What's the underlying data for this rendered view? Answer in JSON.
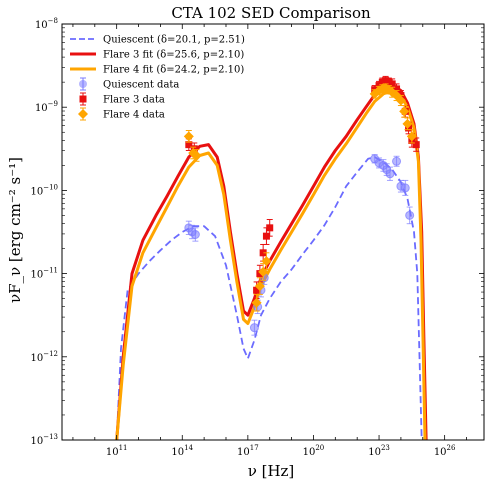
{
  "chart_data": {
    "type": "scatter",
    "title": "CTA 102 SED Comparison",
    "xlabel": "ν [Hz]",
    "ylabel": "νF_ν [erg cm⁻² s⁻¹]",
    "x_scale": "log",
    "y_scale": "log",
    "xlim_log10": [
      8.5,
      27.8
    ],
    "ylim_log10": [
      -13,
      -8
    ],
    "x_ticks": [
      {
        "log10": 11,
        "label": "10",
        "exp": "11"
      },
      {
        "log10": 14,
        "label": "10",
        "exp": "14"
      },
      {
        "log10": 17,
        "label": "10",
        "exp": "17"
      },
      {
        "log10": 20,
        "label": "10",
        "exp": "20"
      },
      {
        "log10": 23,
        "label": "10",
        "exp": "23"
      },
      {
        "log10": 26,
        "label": "10",
        "exp": "26"
      }
    ],
    "y_ticks": [
      {
        "log10": -13,
        "label": "10",
        "exp": "−13"
      },
      {
        "log10": -12,
        "label": "10",
        "exp": "−12"
      },
      {
        "log10": -11,
        "label": "10",
        "exp": "−11"
      },
      {
        "log10": -10,
        "label": "10",
        "exp": "−10"
      },
      {
        "log10": -9,
        "label": "10",
        "exp": "−9"
      },
      {
        "log10": -8,
        "label": "10",
        "exp": "−8"
      }
    ],
    "grid": false,
    "legend_position": "top-left",
    "legend": [
      {
        "label": "Quiescent (δ=20.1, p=2.51)",
        "style": "dashed-line",
        "color": "#6b6bff"
      },
      {
        "label": "Flare 3 fit (δ=25.6, p=2.10)",
        "style": "line",
        "color": "#e81010"
      },
      {
        "label": "Flare 4 fit (δ=24.2, p=2.10)",
        "style": "line",
        "color": "#ffa500"
      },
      {
        "label": "Quiescent data",
        "style": "circle",
        "color": "#7b7bff"
      },
      {
        "label": "Flare 3 data",
        "style": "square",
        "color": "#e81010"
      },
      {
        "label": "Flare 4 data",
        "style": "diamond",
        "color": "#ffa500"
      }
    ],
    "series": [
      {
        "kind": "model",
        "color": "#6b6bff",
        "dash": true,
        "width": 1.8,
        "x_log10": [
          11.0,
          11.2,
          11.5,
          12.0,
          12.5,
          13.0,
          13.5,
          14.0,
          14.5,
          15.0,
          15.5,
          16.0,
          16.5,
          16.8,
          17.0,
          17.3,
          17.6,
          18.0,
          18.5,
          19.0,
          19.5,
          20.0,
          20.5,
          21.0,
          21.5,
          22.0,
          22.5,
          22.8,
          23.0,
          23.3,
          23.6,
          24.0,
          24.3,
          24.6,
          24.75,
          24.85,
          24.95
        ],
        "y_log10": [
          -13.0,
          -11.9,
          -11.2,
          -11.0,
          -10.85,
          -10.72,
          -10.6,
          -10.5,
          -10.43,
          -10.43,
          -10.55,
          -10.9,
          -11.5,
          -11.9,
          -12.02,
          -11.8,
          -11.5,
          -11.3,
          -11.1,
          -10.95,
          -10.77,
          -10.6,
          -10.42,
          -10.2,
          -9.95,
          -9.78,
          -9.62,
          -9.6,
          -9.63,
          -9.68,
          -9.75,
          -9.9,
          -10.1,
          -10.5,
          -11.0,
          -12.0,
          -13.0
        ]
      },
      {
        "kind": "model",
        "color": "#e81010",
        "dash": false,
        "width": 3,
        "x_log10": [
          11.0,
          11.3,
          11.7,
          12.2,
          12.8,
          13.3,
          13.8,
          14.3,
          14.8,
          15.2,
          15.6,
          15.9,
          16.2,
          16.5,
          16.8,
          17.0,
          17.3,
          17.6,
          18.0,
          18.5,
          19.0,
          19.5,
          20.0,
          20.5,
          21.0,
          21.5,
          22.0,
          22.4,
          22.8,
          23.2,
          23.6,
          24.0,
          24.3,
          24.6,
          24.8,
          24.95,
          25.05,
          25.15
        ],
        "y_log10": [
          -13.0,
          -12.0,
          -11.0,
          -10.6,
          -10.3,
          -10.07,
          -9.83,
          -9.6,
          -9.47,
          -9.45,
          -9.6,
          -9.95,
          -10.5,
          -11.0,
          -11.45,
          -11.5,
          -11.3,
          -11.05,
          -10.85,
          -10.62,
          -10.4,
          -10.18,
          -9.95,
          -9.72,
          -9.52,
          -9.35,
          -9.15,
          -9.0,
          -8.85,
          -8.76,
          -8.73,
          -8.8,
          -8.95,
          -9.2,
          -9.6,
          -10.5,
          -11.8,
          -13.0
        ]
      },
      {
        "kind": "model",
        "color": "#ffa500",
        "dash": false,
        "width": 3,
        "x_log10": [
          11.0,
          11.3,
          11.7,
          12.2,
          12.8,
          13.3,
          13.8,
          14.3,
          14.8,
          15.2,
          15.6,
          15.9,
          16.2,
          16.5,
          16.8,
          17.0,
          17.3,
          17.6,
          18.0,
          18.5,
          19.0,
          19.5,
          20.0,
          20.5,
          21.0,
          21.5,
          22.0,
          22.4,
          22.8,
          23.2,
          23.6,
          24.0,
          24.3,
          24.6,
          24.8,
          24.92,
          25.02,
          25.1
        ],
        "y_log10": [
          -13.0,
          -12.1,
          -11.15,
          -10.75,
          -10.45,
          -10.2,
          -9.95,
          -9.72,
          -9.58,
          -9.55,
          -9.7,
          -10.05,
          -10.6,
          -11.1,
          -11.55,
          -11.6,
          -11.4,
          -11.15,
          -10.95,
          -10.72,
          -10.5,
          -10.28,
          -10.05,
          -9.82,
          -9.62,
          -9.44,
          -9.24,
          -9.08,
          -8.93,
          -8.84,
          -8.8,
          -8.86,
          -9.0,
          -9.25,
          -9.65,
          -10.6,
          -11.9,
          -13.0
        ]
      },
      {
        "kind": "data",
        "marker": "circle",
        "color": "#7b7bff",
        "alpha": 0.55,
        "points": [
          [
            14.3,
            -10.45,
            0.08
          ],
          [
            14.45,
            -10.5,
            0.08
          ],
          [
            14.6,
            -10.53,
            0.08
          ],
          [
            17.3,
            -11.65,
            0.09
          ],
          [
            17.45,
            -11.4,
            0.08
          ],
          [
            17.6,
            -11.2,
            0.08
          ],
          [
            17.75,
            -11.05,
            0.08
          ],
          [
            22.8,
            -9.62,
            0.05
          ],
          [
            23.0,
            -9.67,
            0.06
          ],
          [
            23.2,
            -9.7,
            0.07
          ],
          [
            23.35,
            -9.75,
            0.07
          ],
          [
            23.5,
            -9.8,
            0.08
          ],
          [
            23.8,
            -9.65,
            0.06
          ],
          [
            24.0,
            -9.95,
            0.07
          ],
          [
            24.2,
            -9.97,
            0.09
          ],
          [
            24.4,
            -10.3,
            0.1
          ]
        ]
      },
      {
        "kind": "data",
        "marker": "square",
        "color": "#e81010",
        "alpha": 1,
        "points": [
          [
            14.3,
            -9.45,
            0.07
          ],
          [
            14.55,
            -9.5,
            0.07
          ],
          [
            17.4,
            -11.2,
            0.1
          ],
          [
            17.55,
            -11.0,
            0.1
          ],
          [
            17.7,
            -10.75,
            0.1
          ],
          [
            17.85,
            -10.55,
            0.1
          ],
          [
            18.0,
            -10.45,
            0.1
          ],
          [
            22.8,
            -8.79,
            0.05
          ],
          [
            23.0,
            -8.74,
            0.05
          ],
          [
            23.15,
            -8.7,
            0.05
          ],
          [
            23.3,
            -8.68,
            0.05
          ],
          [
            23.45,
            -8.7,
            0.05
          ],
          [
            23.6,
            -8.72,
            0.06
          ],
          [
            23.8,
            -8.78,
            0.06
          ],
          [
            24.0,
            -8.86,
            0.06
          ],
          [
            24.2,
            -9.05,
            0.07
          ],
          [
            24.35,
            -9.25,
            0.07
          ],
          [
            24.5,
            -9.4,
            0.08
          ],
          [
            24.7,
            -9.45,
            0.08
          ]
        ]
      },
      {
        "kind": "data",
        "marker": "diamond",
        "color": "#ffa500",
        "alpha": 1,
        "points": [
          [
            14.3,
            -9.35,
            0.07
          ],
          [
            14.5,
            -9.55,
            0.07
          ],
          [
            14.65,
            -9.58,
            0.07
          ],
          [
            17.4,
            -11.35,
            0.1
          ],
          [
            17.55,
            -11.15,
            0.1
          ],
          [
            17.7,
            -10.98,
            0.1
          ],
          [
            17.85,
            -10.85,
            0.1
          ],
          [
            22.8,
            -8.84,
            0.05
          ],
          [
            23.0,
            -8.8,
            0.05
          ],
          [
            23.15,
            -8.78,
            0.05
          ],
          [
            23.3,
            -8.77,
            0.05
          ],
          [
            23.45,
            -8.79,
            0.05
          ],
          [
            23.6,
            -8.82,
            0.06
          ],
          [
            23.8,
            -8.86,
            0.06
          ],
          [
            24.0,
            -8.92,
            0.06
          ],
          [
            24.15,
            -9.05,
            0.07
          ],
          [
            24.3,
            -9.2,
            0.07
          ],
          [
            24.5,
            -9.35,
            0.08
          ]
        ]
      }
    ]
  }
}
